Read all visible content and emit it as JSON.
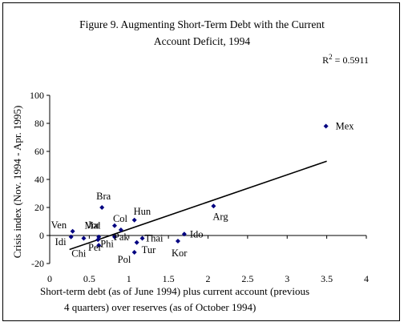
{
  "chart_data": {
    "type": "scatter",
    "title_lines": [
      "Figure 9. Augmenting Short-Term Debt with the Current",
      "Account Deficit, 1994"
    ],
    "r_squared": {
      "prefix": "R",
      "sup": "2",
      "value_text": " = 0.5911"
    },
    "xlabel_lines": [
      "Short-term debt (as of June 1994) plus current account (previous",
      "4 quarters) over  reserves (as of October 1994)"
    ],
    "ylabel": "Crisis index  (Nov. 1994 - Apr. 1995)",
    "xlim": [
      0,
      4
    ],
    "ylim": [
      -20,
      100
    ],
    "x_ticks": [
      0,
      0.5,
      1,
      1.5,
      2,
      2.5,
      3,
      3.5,
      4
    ],
    "x_tick_labels": [
      "0",
      "0.5",
      "1",
      "1.5",
      "2",
      "2.5",
      "3",
      "3.5",
      "4"
    ],
    "y_ticks": [
      -20,
      0,
      20,
      40,
      60,
      80,
      100
    ],
    "y_tick_labels": [
      "-20",
      "0",
      "20",
      "40",
      "60",
      "80",
      "100"
    ],
    "marker_color": "#000080",
    "points": [
      {
        "label": "Mex",
        "x": 3.49,
        "y": 78
      },
      {
        "label": "Bra",
        "x": 0.66,
        "y": 20
      },
      {
        "label": "Arg",
        "x": 2.07,
        "y": 21
      },
      {
        "label": "Hun",
        "x": 1.07,
        "y": 11
      },
      {
        "label": "Col",
        "x": 0.82,
        "y": 7
      },
      {
        "label": "Jor",
        "x": 0.62,
        "y": -1
      },
      {
        "label": "Ven",
        "x": 0.29,
        "y": 3
      },
      {
        "label": "Mal",
        "x": 0.43,
        "y": -2
      },
      {
        "label": "Idi",
        "x": 0.27,
        "y": -1
      },
      {
        "label": "Chi",
        "x": 0.61,
        "y": -3
      },
      {
        "label": "Phi",
        "x": 0.62,
        "y": -7
      },
      {
        "label": "Per",
        "x": 0.82,
        "y": -1
      },
      {
        "label": "Pak",
        "x": 0.9,
        "y": 4
      },
      {
        "label": "Thai",
        "x": 1.17,
        "y": -2
      },
      {
        "label": "Tur",
        "x": 1.1,
        "y": -5
      },
      {
        "label": "Pol",
        "x": 1.07,
        "y": -12
      },
      {
        "label": "Ido",
        "x": 1.7,
        "y": 1
      },
      {
        "label": "Kor",
        "x": 1.62,
        "y": -4
      }
    ],
    "trendline": {
      "x": [
        0.25,
        3.5
      ],
      "y": [
        -10,
        53
      ],
      "color": "#000000"
    },
    "grid": false
  }
}
